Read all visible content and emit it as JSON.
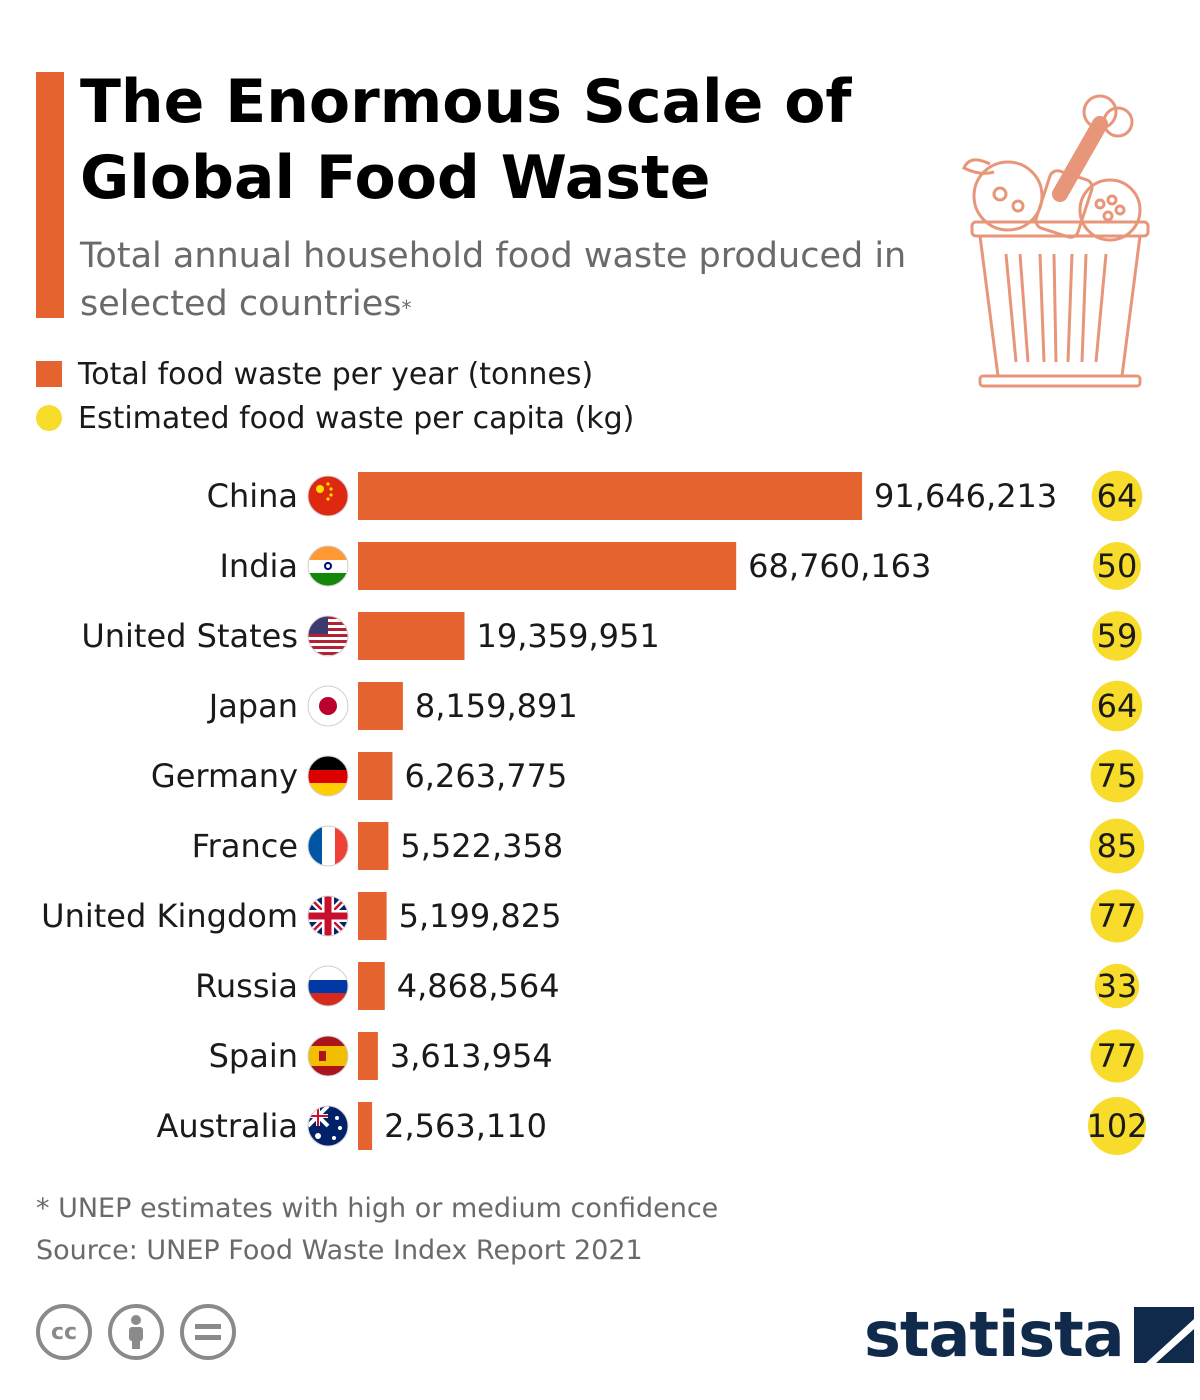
{
  "header": {
    "title_line1": "The Enormous Scale of",
    "title_line2": "Global Food Waste",
    "subtitle": "Total annual household food waste produced in selected countries",
    "subtitle_mark": "*"
  },
  "legend": {
    "total_label": "Total food waste per year (tonnes)",
    "per_capita_label": "Estimated food waste per capita (kg)"
  },
  "colors": {
    "accent": "#E5632E",
    "bar": "#E5632E",
    "dot": "#F8DC2B",
    "illustration": "#E8967A",
    "brand": "#0F2A4A",
    "muted": "#8A8A8A"
  },
  "chart_data": {
    "type": "bar",
    "orientation": "horizontal",
    "categories": [
      "China",
      "India",
      "United States",
      "Japan",
      "Germany",
      "France",
      "United Kingdom",
      "Russia",
      "Spain",
      "Australia"
    ],
    "flags": [
      "china-flag-icon",
      "india-flag-icon",
      "us-flag-icon",
      "japan-flag-icon",
      "germany-flag-icon",
      "france-flag-icon",
      "uk-flag-icon",
      "russia-flag-icon",
      "spain-flag-icon",
      "australia-flag-icon"
    ],
    "series": [
      {
        "name": "Total food waste per year (tonnes)",
        "values": [
          91646213,
          68760163,
          19359951,
          8159891,
          6263775,
          5522358,
          5199825,
          4868564,
          3613954,
          2563110
        ],
        "labels": [
          "91,646,213",
          "68,760,163",
          "19,359,951",
          "8,159,891",
          "6,263,775",
          "5,522,358",
          "5,199,825",
          "4,868,564",
          "3,613,954",
          "2,563,110"
        ]
      },
      {
        "name": "Estimated food waste per capita (kg)",
        "values": [
          64,
          50,
          59,
          64,
          75,
          85,
          77,
          33,
          77,
          102
        ],
        "labels": [
          "64",
          "50",
          "59",
          "64",
          "75",
          "85",
          "77",
          "33",
          "77",
          "102"
        ]
      }
    ],
    "xlim": [
      0,
      92000000
    ],
    "grid": false,
    "legend": "top-left"
  },
  "footer": {
    "note": "* UNEP estimates with high or medium confidence",
    "source": "Source: UNEP Food Waste Index Report 2021",
    "cc_label": "cc",
    "brand": "statista"
  }
}
